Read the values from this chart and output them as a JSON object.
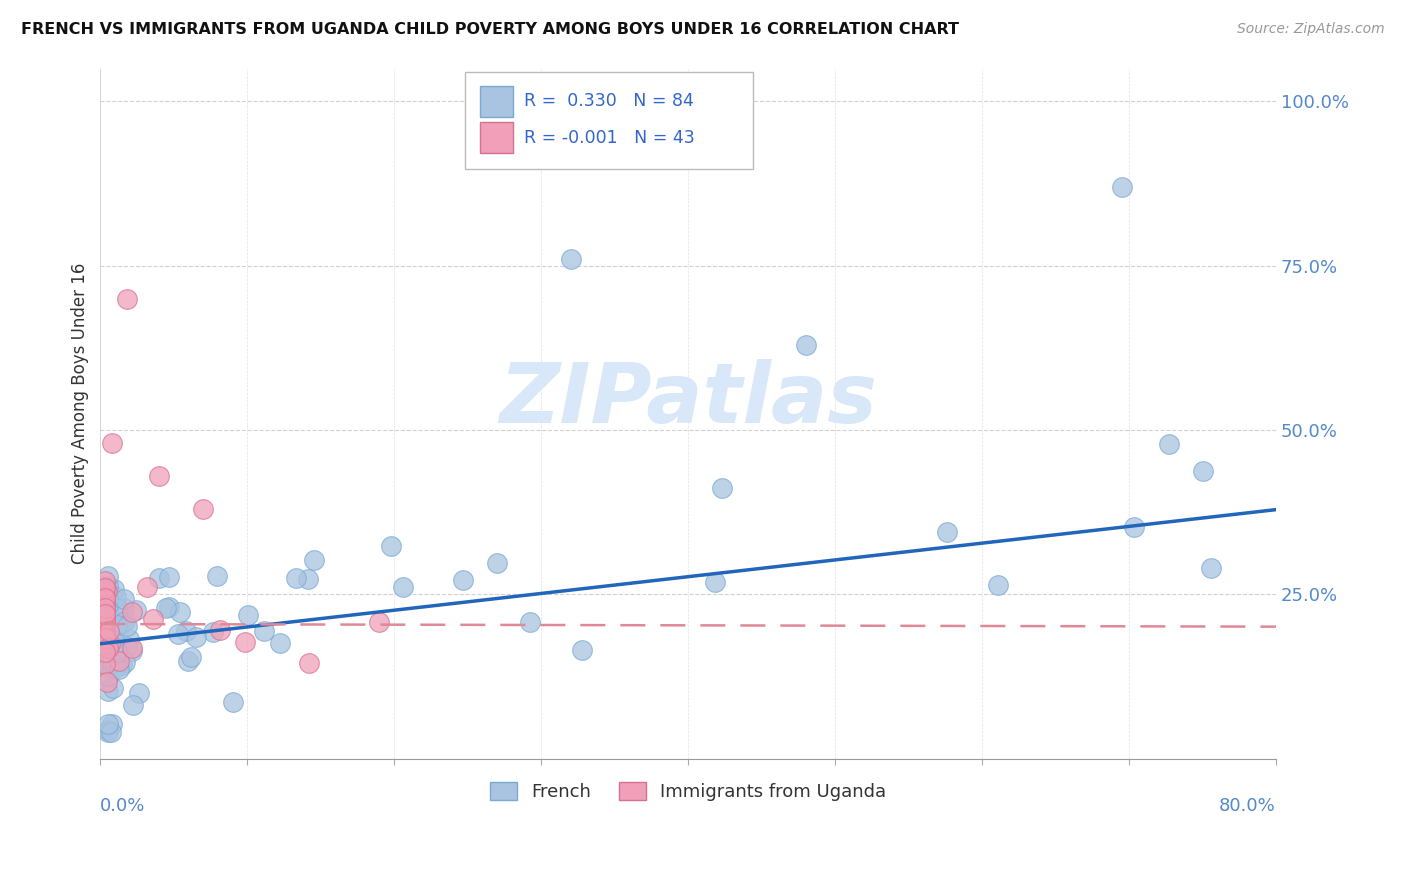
{
  "title": "FRENCH VS IMMIGRANTS FROM UGANDA CHILD POVERTY AMONG BOYS UNDER 16 CORRELATION CHART",
  "source": "Source: ZipAtlas.com",
  "ylabel": "Child Poverty Among Boys Under 16",
  "ytick_labels": [
    "",
    "25.0%",
    "50.0%",
    "75.0%",
    "100.0%"
  ],
  "xlim": [
    0.0,
    0.8
  ],
  "ylim": [
    0.0,
    1.05
  ],
  "french_color": "#a8c4e0",
  "french_color_edge": "#7aaad4",
  "uganda_color": "#f0a0b8",
  "uganda_color_edge": "#d87090",
  "french_line_color": "#2266bb",
  "uganda_line_color": "#e08898",
  "french_R": 0.33,
  "french_N": 84,
  "uganda_R": -0.001,
  "uganda_N": 43,
  "legend_text_color": "#3366cc",
  "french_intercept": 0.175,
  "french_slope": 0.255,
  "uganda_intercept": 0.205,
  "uganda_slope": -0.005,
  "watermark_color": "#d8e8f8"
}
